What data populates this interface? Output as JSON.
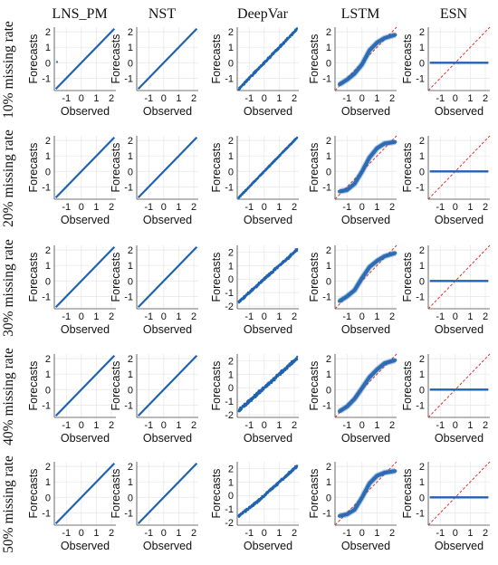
{
  "figure": {
    "columns": [
      "LNS_PM",
      "NST",
      "DeepVar",
      "LSTM",
      "ESN"
    ],
    "rows": [
      "10% missing rate",
      "20% missing rate",
      "30% missing rate",
      "40% missing rate",
      "50% missing rate"
    ],
    "xlabel": "Observed",
    "ylabel": "Forecasts",
    "x_ticks": [
      "-1",
      "0",
      "1",
      "2"
    ],
    "y_ticks": [
      "2",
      "1",
      "0",
      "-1",
      "-2"
    ]
  },
  "colors": {
    "series": "#1f63b0",
    "reference": "#e03030",
    "grid": "#e6e6e6"
  },
  "chart_data": [
    {
      "type": "scatter",
      "row": "10% missing rate",
      "model": "LNS_PM",
      "xlim": [
        -1.8,
        2.3
      ],
      "ylim": [
        -1.8,
        2.3
      ],
      "shape": "identity",
      "reference_line": false,
      "x": [
        -1.7,
        -1,
        0,
        1,
        2.2
      ],
      "y": [
        -1.7,
        -1,
        0,
        1,
        2.2
      ]
    },
    {
      "type": "scatter",
      "row": "10% missing rate",
      "model": "NST",
      "xlim": [
        -1.8,
        2.3
      ],
      "ylim": [
        -1.8,
        2.3
      ],
      "shape": "identity",
      "reference_line": false,
      "x": [
        -1.7,
        -1,
        0,
        1,
        2.2
      ],
      "y": [
        -1.7,
        -1,
        0,
        1,
        2.2
      ]
    },
    {
      "type": "scatter",
      "row": "10% missing rate",
      "model": "DeepVar",
      "xlim": [
        -1.8,
        2.3
      ],
      "ylim": [
        -1.8,
        2.3
      ],
      "shape": "band",
      "reference_line": false,
      "x": [
        -1.7,
        -1,
        0,
        1,
        2.2
      ],
      "y": [
        -1.7,
        -1,
        0,
        1,
        2.2
      ]
    },
    {
      "type": "scatter",
      "row": "10% missing rate",
      "model": "LSTM",
      "xlim": [
        -1.8,
        2.3
      ],
      "ylim": [
        -1.8,
        2.3
      ],
      "shape": "sigmoid",
      "reference_line": true,
      "x": [
        -1.5,
        -1,
        -0.5,
        0,
        0.5,
        1,
        1.5,
        2.2
      ],
      "y": [
        -1.4,
        -1.1,
        -0.7,
        -0.1,
        0.8,
        1.3,
        1.6,
        1.8
      ]
    },
    {
      "type": "scatter",
      "row": "10% missing rate",
      "model": "ESN",
      "xlim": [
        -1.8,
        2.3
      ],
      "ylim": [
        -1.8,
        2.3
      ],
      "shape": "flat",
      "reference_line": true,
      "x": [
        -1.7,
        2.2
      ],
      "y": [
        0,
        0
      ]
    },
    {
      "type": "scatter",
      "row": "20% missing rate",
      "model": "LNS_PM",
      "xlim": [
        -1.8,
        2.3
      ],
      "ylim": [
        -1.8,
        2.3
      ],
      "shape": "identity",
      "reference_line": false,
      "x": [
        -1.7,
        -1,
        0,
        1,
        2.2
      ],
      "y": [
        -1.7,
        -1,
        0,
        1,
        2.2
      ]
    },
    {
      "type": "scatter",
      "row": "20% missing rate",
      "model": "NST",
      "xlim": [
        -1.8,
        2.3
      ],
      "ylim": [
        -1.8,
        2.3
      ],
      "shape": "identity",
      "reference_line": false,
      "x": [
        -1.7,
        -1,
        0,
        1,
        2.2
      ],
      "y": [
        -1.7,
        -1,
        0,
        1,
        2.2
      ]
    },
    {
      "type": "scatter",
      "row": "20% missing rate",
      "model": "DeepVar",
      "xlim": [
        -1.8,
        2.3
      ],
      "ylim": [
        -1.8,
        2.3
      ],
      "shape": "band",
      "reference_line": false,
      "x": [
        -1.7,
        -1,
        0,
        1,
        2.2
      ],
      "y": [
        -1.7,
        -1,
        0,
        1,
        2.2
      ]
    },
    {
      "type": "scatter",
      "row": "20% missing rate",
      "model": "LSTM",
      "xlim": [
        -1.8,
        2.3
      ],
      "ylim": [
        -1.8,
        2.3
      ],
      "shape": "sigmoid",
      "reference_line": true,
      "x": [
        -1.5,
        -1,
        -0.5,
        0,
        0.5,
        1,
        1.5,
        2.2
      ],
      "y": [
        -1.3,
        -1.2,
        -0.8,
        0,
        0.9,
        1.5,
        1.8,
        1.9
      ]
    },
    {
      "type": "scatter",
      "row": "20% missing rate",
      "model": "ESN",
      "xlim": [
        -1.8,
        2.3
      ],
      "ylim": [
        -1.8,
        2.3
      ],
      "shape": "flat",
      "reference_line": true,
      "x": [
        -1.7,
        2.2
      ],
      "y": [
        0,
        0
      ]
    },
    {
      "type": "scatter",
      "row": "30% missing rate",
      "model": "LNS_PM",
      "xlim": [
        -1.8,
        2.3
      ],
      "ylim": [
        -1.8,
        2.3
      ],
      "shape": "identity",
      "reference_line": false,
      "x": [
        -1.7,
        -1,
        0,
        1,
        2.2
      ],
      "y": [
        -1.7,
        -1,
        0,
        1,
        2.2
      ]
    },
    {
      "type": "scatter",
      "row": "30% missing rate",
      "model": "NST",
      "xlim": [
        -1.8,
        2.3
      ],
      "ylim": [
        -1.8,
        2.3
      ],
      "shape": "identity",
      "reference_line": false,
      "x": [
        -1.7,
        -1,
        0,
        1,
        2.2
      ],
      "y": [
        -1.7,
        -1,
        0,
        1,
        2.2
      ]
    },
    {
      "type": "scatter",
      "row": "30% missing rate",
      "model": "DeepVar",
      "xlim": [
        -1.8,
        2.3
      ],
      "ylim": [
        -2.2,
        2.5
      ],
      "shape": "band",
      "reference_line": false,
      "x": [
        -1.7,
        -1,
        0,
        1,
        2.2
      ],
      "y": [
        -1.7,
        -1,
        0,
        1,
        2.2
      ]
    },
    {
      "type": "scatter",
      "row": "30% missing rate",
      "model": "LSTM",
      "xlim": [
        -1.8,
        2.3
      ],
      "ylim": [
        -1.8,
        2.3
      ],
      "shape": "sigmoid",
      "reference_line": true,
      "x": [
        -1.5,
        -1,
        -0.5,
        0,
        0.5,
        1,
        1.5,
        2.2
      ],
      "y": [
        -1.3,
        -1.0,
        -0.6,
        0.2,
        0.9,
        1.3,
        1.6,
        1.8
      ]
    },
    {
      "type": "scatter",
      "row": "30% missing rate",
      "model": "ESN",
      "xlim": [
        -1.8,
        2.3
      ],
      "ylim": [
        -1.8,
        2.3
      ],
      "shape": "flat",
      "reference_line": true,
      "x": [
        -1.7,
        2.2
      ],
      "y": [
        0,
        0
      ]
    },
    {
      "type": "scatter",
      "row": "40% missing rate",
      "model": "LNS_PM",
      "xlim": [
        -1.8,
        2.3
      ],
      "ylim": [
        -1.8,
        2.3
      ],
      "shape": "identity",
      "reference_line": false,
      "x": [
        -1.7,
        -1,
        0,
        1,
        2.2
      ],
      "y": [
        -1.7,
        -1,
        0,
        1,
        2.2
      ]
    },
    {
      "type": "scatter",
      "row": "40% missing rate",
      "model": "NST",
      "xlim": [
        -1.8,
        2.3
      ],
      "ylim": [
        -1.8,
        2.3
      ],
      "shape": "identity",
      "reference_line": false,
      "x": [
        -1.7,
        -1,
        0,
        1,
        2.2
      ],
      "y": [
        -1.7,
        -1,
        0,
        1,
        2.2
      ]
    },
    {
      "type": "scatter",
      "row": "40% missing rate",
      "model": "DeepVar",
      "xlim": [
        -1.8,
        2.3
      ],
      "ylim": [
        -2.2,
        2.5
      ],
      "shape": "band",
      "reference_line": false,
      "x": [
        -1.7,
        -1,
        0,
        1,
        2.2
      ],
      "y": [
        -1.7,
        -1,
        0,
        1,
        2.2
      ]
    },
    {
      "type": "scatter",
      "row": "40% missing rate",
      "model": "LSTM",
      "xlim": [
        -1.8,
        2.3
      ],
      "ylim": [
        -1.8,
        2.3
      ],
      "shape": "sigmoid",
      "reference_line": true,
      "x": [
        -1.5,
        -1,
        -0.5,
        0,
        0.5,
        1,
        1.5,
        2.2
      ],
      "y": [
        -1.4,
        -1.1,
        -0.6,
        0.1,
        0.8,
        1.3,
        1.7,
        1.9
      ]
    },
    {
      "type": "scatter",
      "row": "40% missing rate",
      "model": "ESN",
      "xlim": [
        -1.8,
        2.3
      ],
      "ylim": [
        -1.8,
        2.3
      ],
      "shape": "flat",
      "reference_line": true,
      "x": [
        -1.7,
        2.2
      ],
      "y": [
        0,
        0
      ]
    },
    {
      "type": "scatter",
      "row": "50% missing rate",
      "model": "LNS_PM",
      "xlim": [
        -1.8,
        2.3
      ],
      "ylim": [
        -1.8,
        2.3
      ],
      "shape": "identity",
      "reference_line": false,
      "x": [
        -1.7,
        -1,
        0,
        1,
        2.2
      ],
      "y": [
        -1.7,
        -1,
        0,
        1,
        2.2
      ]
    },
    {
      "type": "scatter",
      "row": "50% missing rate",
      "model": "NST",
      "xlim": [
        -1.8,
        2.3
      ],
      "ylim": [
        -1.8,
        2.3
      ],
      "shape": "identity",
      "reference_line": false,
      "x": [
        -1.7,
        -1,
        0,
        1,
        2.2
      ],
      "y": [
        -1.7,
        -1,
        0,
        1,
        2.2
      ]
    },
    {
      "type": "scatter",
      "row": "50% missing rate",
      "model": "DeepVar",
      "xlim": [
        -1.8,
        2.3
      ],
      "ylim": [
        -2.2,
        2.5
      ],
      "shape": "band",
      "reference_line": false,
      "x": [
        -1.7,
        -1,
        0,
        1,
        2.2
      ],
      "y": [
        -1.9,
        -1.1,
        0,
        1,
        2.1
      ]
    },
    {
      "type": "scatter",
      "row": "50% missing rate",
      "model": "LSTM",
      "xlim": [
        -1.8,
        2.3
      ],
      "ylim": [
        -1.8,
        2.3
      ],
      "shape": "sigmoid",
      "reference_line": true,
      "x": [
        -1.5,
        -1,
        -0.5,
        0,
        0.5,
        1,
        1.5,
        2.2
      ],
      "y": [
        -1.2,
        -1.1,
        -0.8,
        0,
        0.9,
        1.4,
        1.6,
        1.7
      ]
    },
    {
      "type": "scatter",
      "row": "50% missing rate",
      "model": "ESN",
      "xlim": [
        -1.8,
        2.3
      ],
      "ylim": [
        -1.8,
        2.3
      ],
      "shape": "flat",
      "reference_line": true,
      "x": [
        -1.7,
        2.2
      ],
      "y": [
        0,
        0
      ]
    }
  ]
}
